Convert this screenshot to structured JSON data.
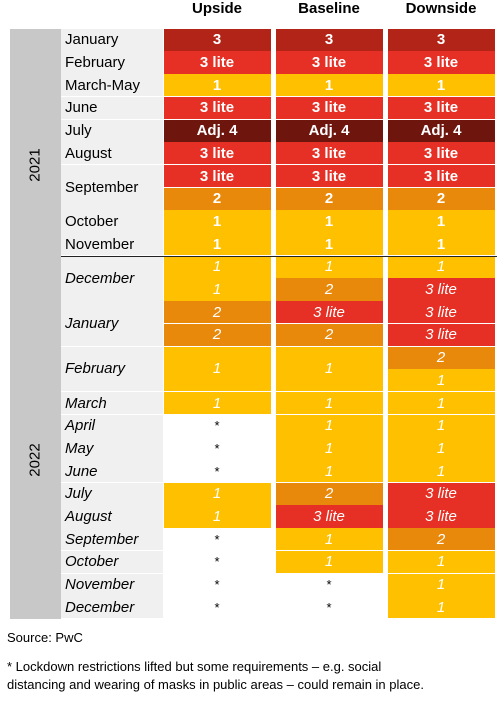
{
  "colors": {
    "1": "#FFC000",
    "2": "#E8890C",
    "3 lite": "#E63025",
    "3": "#B22418",
    "Adj. 4": "#6E150E",
    "*": "#ffffff"
  },
  "chart_data": {
    "type": "table",
    "columns": [
      "Upside",
      "Baseline",
      "Downside"
    ],
    "years": [
      {
        "label": "2021",
        "months": [
          "January",
          "February",
          "March-May",
          "June",
          "July",
          "August",
          "September",
          "October",
          "November",
          "December"
        ]
      },
      {
        "label": "2022",
        "months": [
          "January",
          "February",
          "March",
          "April",
          "May",
          "June",
          "July",
          "August",
          "September",
          "October",
          "November",
          "December"
        ]
      }
    ],
    "rows": [
      {
        "year": "2021",
        "month": "January",
        "upside": [
          "3"
        ],
        "baseline": [
          "3"
        ],
        "downside": [
          "3"
        ]
      },
      {
        "year": "2021",
        "month": "February",
        "upside": [
          "3 lite"
        ],
        "baseline": [
          "3 lite"
        ],
        "downside": [
          "3 lite"
        ]
      },
      {
        "year": "2021",
        "month": "March-May",
        "upside": [
          "1"
        ],
        "baseline": [
          "1"
        ],
        "downside": [
          "1"
        ]
      },
      {
        "year": "2021",
        "month": "June",
        "upside": [
          "3 lite"
        ],
        "baseline": [
          "3 lite"
        ],
        "downside": [
          "3 lite"
        ]
      },
      {
        "year": "2021",
        "month": "July",
        "upside": [
          "Adj. 4"
        ],
        "baseline": [
          "Adj. 4"
        ],
        "downside": [
          "Adj. 4"
        ]
      },
      {
        "year": "2021",
        "month": "August",
        "upside": [
          "3 lite"
        ],
        "baseline": [
          "3 lite"
        ],
        "downside": [
          "3 lite"
        ]
      },
      {
        "year": "2021",
        "month": "September",
        "upside": [
          "3 lite",
          "2"
        ],
        "baseline": [
          "3 lite",
          "2"
        ],
        "downside": [
          "3 lite",
          "2"
        ]
      },
      {
        "year": "2021",
        "month": "October",
        "upside": [
          "1"
        ],
        "baseline": [
          "1"
        ],
        "downside": [
          "1"
        ]
      },
      {
        "year": "2021",
        "month": "November",
        "upside": [
          "1"
        ],
        "baseline": [
          "1"
        ],
        "downside": [
          "1"
        ]
      },
      {
        "year": "2021",
        "month": "December",
        "upside": [
          "1",
          "1"
        ],
        "baseline": [
          "1",
          "2"
        ],
        "downside": [
          "1",
          "3 lite"
        ]
      },
      {
        "year": "2022",
        "month": "January",
        "upside": [
          "2",
          "2"
        ],
        "baseline": [
          "3 lite",
          "2"
        ],
        "downside": [
          "3 lite",
          "3 lite"
        ]
      },
      {
        "year": "2022",
        "month": "February",
        "upside": [
          "1"
        ],
        "baseline": [
          "1"
        ],
        "downside": [
          "2",
          "1"
        ]
      },
      {
        "year": "2022",
        "month": "March",
        "upside": [
          "1"
        ],
        "baseline": [
          "1"
        ],
        "downside": [
          "1"
        ]
      },
      {
        "year": "2022",
        "month": "April",
        "upside": [
          "*"
        ],
        "baseline": [
          "1"
        ],
        "downside": [
          "1"
        ]
      },
      {
        "year": "2022",
        "month": "May",
        "upside": [
          "*"
        ],
        "baseline": [
          "1"
        ],
        "downside": [
          "1"
        ]
      },
      {
        "year": "2022",
        "month": "June",
        "upside": [
          "*"
        ],
        "baseline": [
          "1"
        ],
        "downside": [
          "1"
        ]
      },
      {
        "year": "2022",
        "month": "July",
        "upside": [
          "1"
        ],
        "baseline": [
          "2"
        ],
        "downside": [
          "3 lite"
        ]
      },
      {
        "year": "2022",
        "month": "August",
        "upside": [
          "1"
        ],
        "baseline": [
          "3 lite"
        ],
        "downside": [
          "3 lite"
        ]
      },
      {
        "year": "2022",
        "month": "September",
        "upside": [
          "*"
        ],
        "baseline": [
          "1"
        ],
        "downside": [
          "2"
        ]
      },
      {
        "year": "2022",
        "month": "October",
        "upside": [
          "*"
        ],
        "baseline": [
          "1"
        ],
        "downside": [
          "1"
        ]
      },
      {
        "year": "2022",
        "month": "November",
        "upside": [
          "*"
        ],
        "baseline": [
          "*"
        ],
        "downside": [
          "1"
        ]
      },
      {
        "year": "2022",
        "month": "December",
        "upside": [
          "*"
        ],
        "baseline": [
          "*"
        ],
        "downside": [
          "1"
        ]
      }
    ]
  },
  "source": "Source: PwC",
  "footnote_line1": "* Lockdown restrictions lifted but some requirements – e.g. social",
  "footnote_line2": "distancing and wearing of masks in public areas – could remain in place."
}
